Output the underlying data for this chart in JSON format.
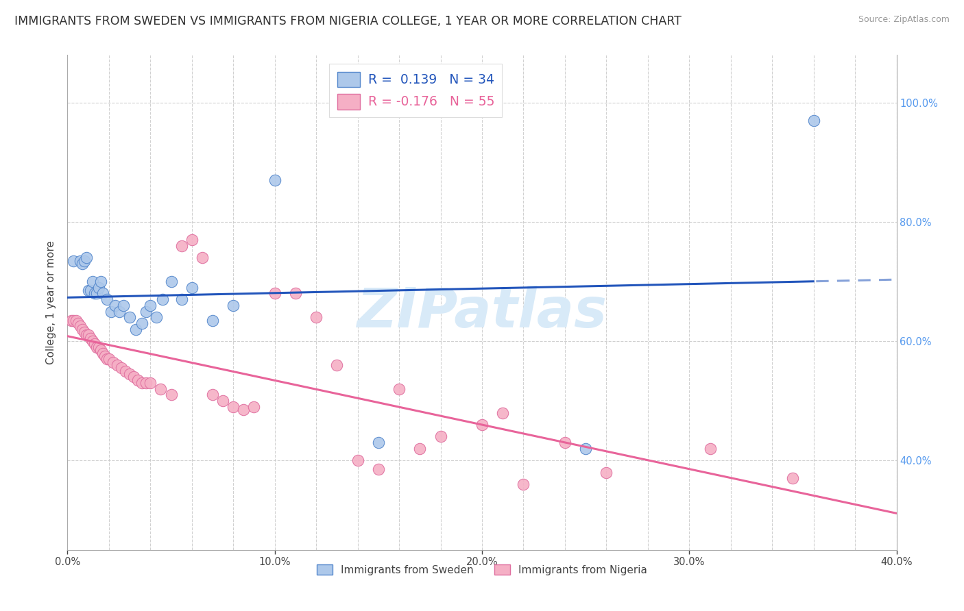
{
  "title": "IMMIGRANTS FROM SWEDEN VS IMMIGRANTS FROM NIGERIA COLLEGE, 1 YEAR OR MORE CORRELATION CHART",
  "source": "Source: ZipAtlas.com",
  "ylabel": "College, 1 year or more",
  "x_min": 0.0,
  "x_max": 0.4,
  "y_min": 0.25,
  "y_max": 1.08,
  "x_tick_labels": [
    "0.0%",
    "",
    "",
    "",
    "",
    "10.0%",
    "",
    "",
    "",
    "",
    "20.0%",
    "",
    "",
    "",
    "",
    "30.0%",
    "",
    "",
    "",
    "",
    "40.0%"
  ],
  "x_tick_values": [
    0.0,
    0.02,
    0.04,
    0.06,
    0.08,
    0.1,
    0.12,
    0.14,
    0.16,
    0.18,
    0.2,
    0.22,
    0.24,
    0.26,
    0.28,
    0.3,
    0.32,
    0.34,
    0.36,
    0.38,
    0.4
  ],
  "x_tick_labels_shown": [
    "0.0%",
    "10.0%",
    "20.0%",
    "30.0%",
    "40.0%"
  ],
  "x_tick_values_shown": [
    0.0,
    0.1,
    0.2,
    0.3,
    0.4
  ],
  "y_tick_labels_right": [
    "100.0%",
    "80.0%",
    "60.0%",
    "40.0%"
  ],
  "y_tick_values_right": [
    1.0,
    0.8,
    0.6,
    0.4
  ],
  "sweden_color": "#adc8ea",
  "nigeria_color": "#f5afc5",
  "sweden_edge_color": "#5588cc",
  "nigeria_edge_color": "#e070a0",
  "sweden_line_color": "#2255bb",
  "nigeria_line_color": "#e8649a",
  "sweden_N": 34,
  "nigeria_N": 55,
  "legend_label_sweden": "R =  0.139   N = 34",
  "legend_label_nigeria": "R = -0.176   N = 55",
  "legend_bottom_sweden": "Immigrants from Sweden",
  "legend_bottom_nigeria": "Immigrants from Nigeria",
  "sweden_x": [
    0.003,
    0.006,
    0.007,
    0.008,
    0.009,
    0.01,
    0.011,
    0.012,
    0.013,
    0.014,
    0.015,
    0.016,
    0.017,
    0.019,
    0.021,
    0.023,
    0.025,
    0.027,
    0.03,
    0.033,
    0.036,
    0.038,
    0.04,
    0.043,
    0.046,
    0.05,
    0.055,
    0.06,
    0.07,
    0.08,
    0.1,
    0.15,
    0.25,
    0.36
  ],
  "sweden_y": [
    0.735,
    0.735,
    0.73,
    0.735,
    0.74,
    0.685,
    0.685,
    0.7,
    0.68,
    0.68,
    0.69,
    0.7,
    0.68,
    0.67,
    0.65,
    0.66,
    0.65,
    0.66,
    0.64,
    0.62,
    0.63,
    0.65,
    0.66,
    0.64,
    0.67,
    0.7,
    0.67,
    0.69,
    0.635,
    0.66,
    0.87,
    0.43,
    0.42,
    0.97
  ],
  "nigeria_x": [
    0.002,
    0.003,
    0.004,
    0.005,
    0.006,
    0.007,
    0.008,
    0.009,
    0.01,
    0.011,
    0.012,
    0.013,
    0.014,
    0.015,
    0.016,
    0.017,
    0.018,
    0.019,
    0.02,
    0.022,
    0.024,
    0.026,
    0.028,
    0.03,
    0.032,
    0.034,
    0.036,
    0.038,
    0.04,
    0.045,
    0.05,
    0.055,
    0.06,
    0.065,
    0.07,
    0.075,
    0.08,
    0.085,
    0.09,
    0.1,
    0.11,
    0.12,
    0.13,
    0.14,
    0.15,
    0.16,
    0.17,
    0.18,
    0.2,
    0.21,
    0.22,
    0.24,
    0.26,
    0.31,
    0.35
  ],
  "nigeria_y": [
    0.635,
    0.635,
    0.635,
    0.63,
    0.625,
    0.62,
    0.615,
    0.61,
    0.61,
    0.605,
    0.6,
    0.595,
    0.59,
    0.59,
    0.585,
    0.58,
    0.575,
    0.57,
    0.57,
    0.565,
    0.56,
    0.555,
    0.55,
    0.545,
    0.54,
    0.535,
    0.53,
    0.53,
    0.53,
    0.52,
    0.51,
    0.76,
    0.77,
    0.74,
    0.51,
    0.5,
    0.49,
    0.485,
    0.49,
    0.68,
    0.68,
    0.64,
    0.56,
    0.4,
    0.385,
    0.52,
    0.42,
    0.44,
    0.46,
    0.48,
    0.36,
    0.43,
    0.38,
    0.42,
    0.37
  ],
  "background_color": "#ffffff",
  "grid_color": "#cccccc",
  "title_fontsize": 12.5,
  "axis_label_fontsize": 11,
  "tick_fontsize": 10.5,
  "watermark_fontsize": 58,
  "watermark_color": "#d8eaf8"
}
